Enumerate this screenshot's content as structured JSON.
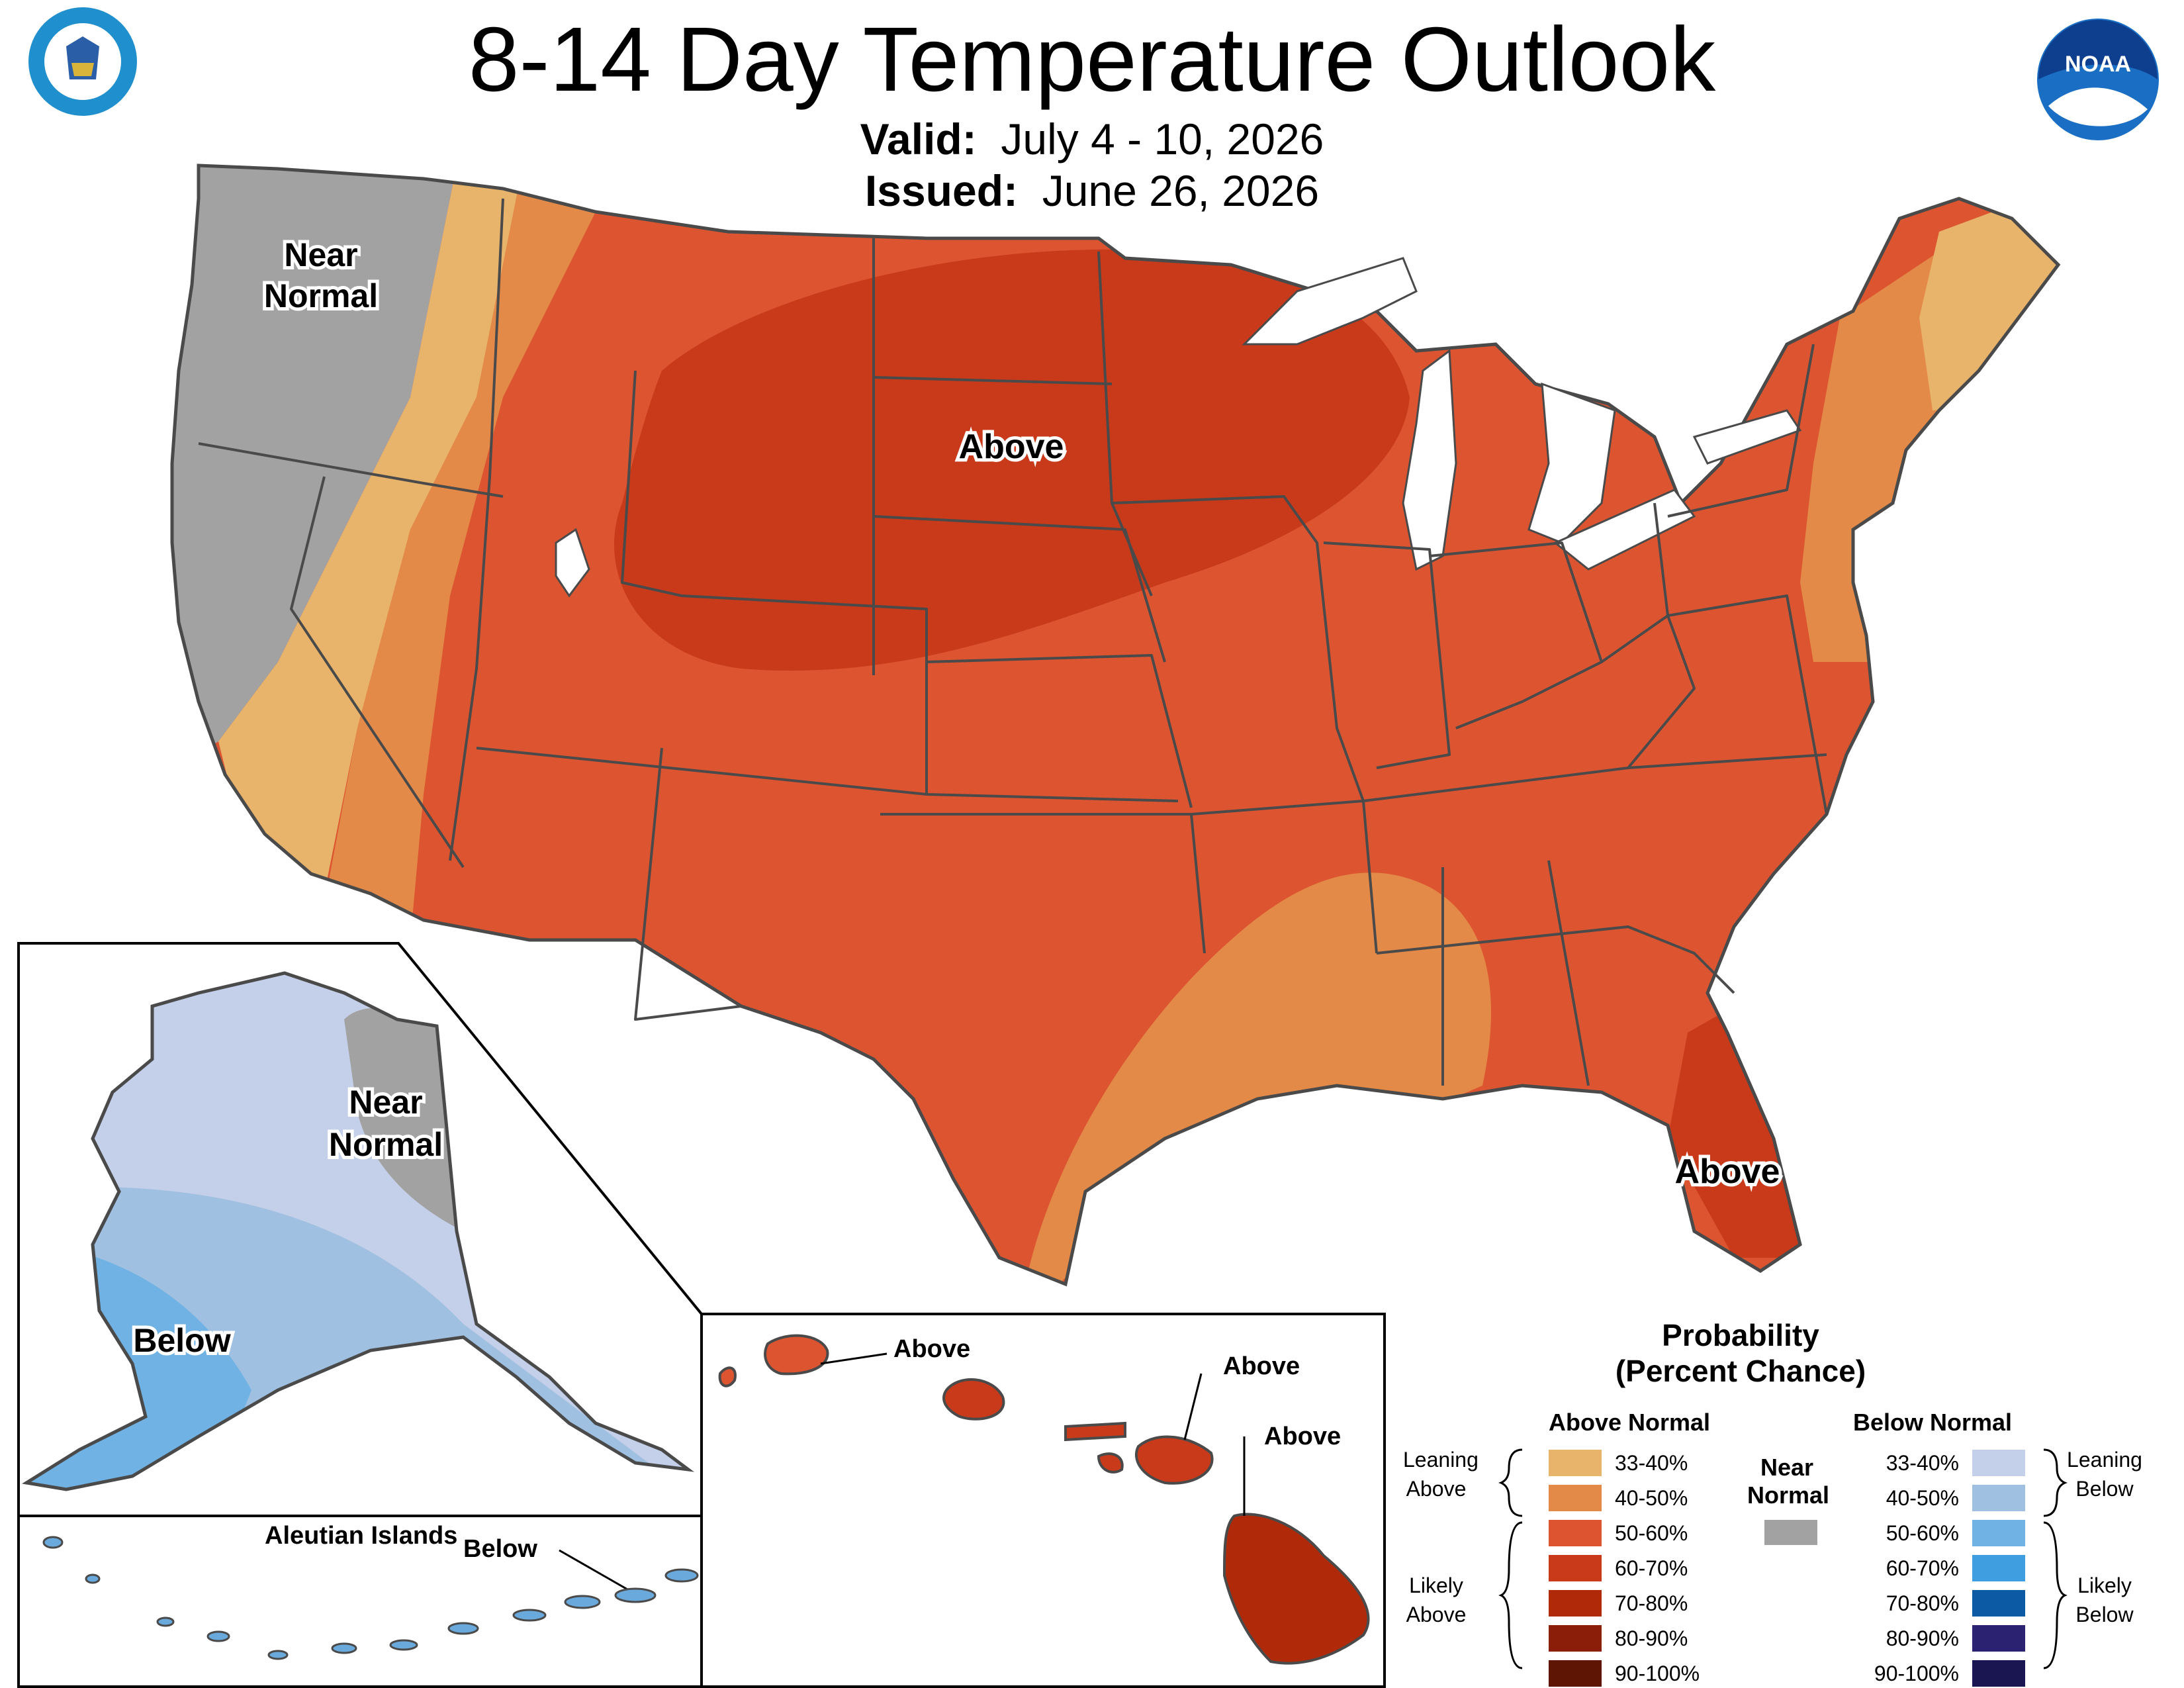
{
  "title": "8-14 Day Temperature Outlook",
  "valid": {
    "label": "Valid:",
    "value": "July 4 - 10, 2026"
  },
  "issued": {
    "label": "Issued:",
    "value": "June 26, 2026"
  },
  "logos": {
    "left": "Department of Commerce seal",
    "right": "NOAA logo",
    "noaa_text": "NOAA"
  },
  "map_labels": {
    "conus_northwest": [
      "Near",
      "Normal"
    ],
    "conus_central": "Above",
    "conus_florida": "Above",
    "alaska_north": [
      "Near",
      "Normal"
    ],
    "alaska_southwest": "Below",
    "aleutian_title": "Aleutian Islands",
    "aleutian_below": "Below",
    "hawaii_kauai": "Above",
    "hawaii_oahu": "Above",
    "hawaii_big_island": "Above"
  },
  "legend": {
    "title_line1": "Probability",
    "title_line2": "(Percent Chance)",
    "above_header": "Above Normal",
    "below_header": "Below Normal",
    "near_header_line1": "Near",
    "near_header_line2": "Normal",
    "leaning_above": [
      "Leaning",
      "Above"
    ],
    "likely_above": [
      "Likely",
      "Above"
    ],
    "leaning_below": [
      "Leaning",
      "Below"
    ],
    "likely_below": [
      "Likely",
      "Below"
    ],
    "above_bins": [
      {
        "label": "33-40%",
        "color": "#e8b36a"
      },
      {
        "label": "40-50%",
        "color": "#e48a48"
      },
      {
        "label": "50-60%",
        "color": "#dc5530"
      },
      {
        "label": "60-70%",
        "color": "#c83a1a"
      },
      {
        "label": "70-80%",
        "color": "#b02a0a"
      },
      {
        "label": "80-90%",
        "color": "#8a1e08"
      },
      {
        "label": "90-100%",
        "color": "#5e1504"
      }
    ],
    "below_bins": [
      {
        "label": "33-40%",
        "color": "#c4cfe9"
      },
      {
        "label": "40-50%",
        "color": "#9fc0e0"
      },
      {
        "label": "50-60%",
        "color": "#70b2e3"
      },
      {
        "label": "60-70%",
        "color": "#3e9ee0"
      },
      {
        "label": "70-80%",
        "color": "#0c5aa4"
      },
      {
        "label": "80-90%",
        "color": "#2c2272"
      },
      {
        "label": "90-100%",
        "color": "#1a1651"
      }
    ],
    "near_color": "#a2a2a2"
  }
}
